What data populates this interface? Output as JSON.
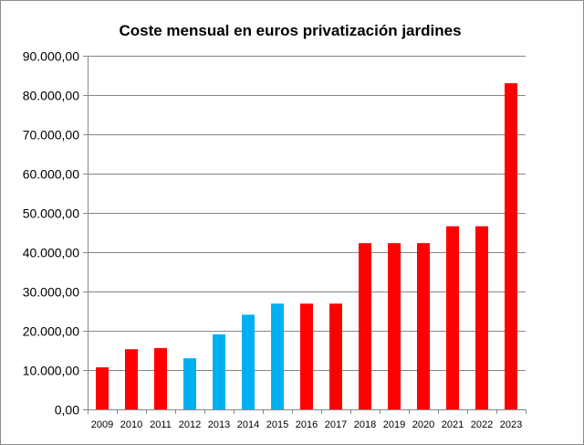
{
  "chart_data": {
    "type": "bar",
    "title": "Coste mensual en euros privatización jardines",
    "xlabel": "",
    "ylabel": "",
    "ylim": [
      0,
      90000
    ],
    "grid": true,
    "y_ticks": [
      "0,00",
      "10.000,00",
      "20.000,00",
      "30.000,00",
      "40.000,00",
      "50.000,00",
      "60.000,00",
      "70.000,00",
      "80.000,00",
      "90.000,00"
    ],
    "categories": [
      "2009",
      "2010",
      "2011",
      "2012",
      "2013",
      "2014",
      "2015",
      "2016",
      "2017",
      "2018",
      "2019",
      "2020",
      "2021",
      "2022",
      "2023"
    ],
    "values": [
      10700,
      15300,
      15600,
      13000,
      19100,
      24100,
      26900,
      26900,
      26900,
      42300,
      42300,
      42300,
      46600,
      46600,
      83000
    ],
    "bar_colors": [
      "#ff0000",
      "#ff0000",
      "#ff0000",
      "#00b0f0",
      "#00b0f0",
      "#00b0f0",
      "#00b0f0",
      "#ff0000",
      "#ff0000",
      "#ff0000",
      "#ff0000",
      "#ff0000",
      "#ff0000",
      "#ff0000",
      "#ff0000"
    ],
    "colors": {
      "axis": "#868686",
      "grid": "#868686"
    }
  }
}
